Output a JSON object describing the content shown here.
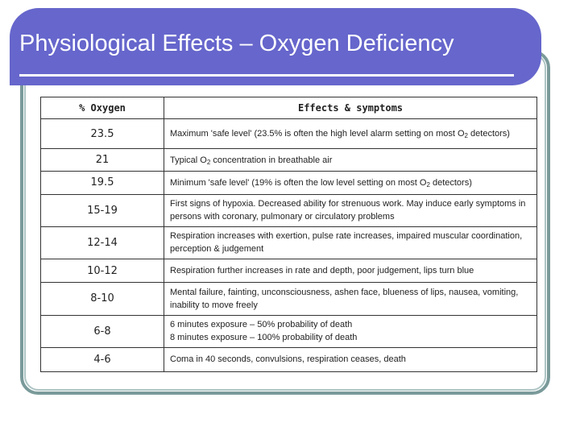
{
  "slide": {
    "title": "Physiological Effects – Oxygen Deficiency"
  },
  "table": {
    "headers": [
      "% Oxygen",
      "Effects & symptoms"
    ],
    "rows": [
      {
        "oxygen": "23.5",
        "effect": [
          "Maximum 'safe level' (23.5% is often the high level alarm setting on most O",
          "2",
          " detectors)"
        ]
      },
      {
        "oxygen": "21",
        "effect": [
          "Typical O",
          "2",
          " concentration in breathable air"
        ]
      },
      {
        "oxygen": "19.5",
        "effect": [
          "Minimum 'safe level' (19% is often the low level setting on most O",
          "2",
          " detectors)"
        ]
      },
      {
        "oxygen": "15-19",
        "effect": [
          "First signs of hypoxia. Decreased ability for strenuous work. May induce early symptoms in persons with coronary, pulmonary or circulatory problems"
        ]
      },
      {
        "oxygen": "12-14",
        "effect": [
          "Respiration increases with exertion, pulse rate increases, impaired muscular coordination, perception & judgement"
        ]
      },
      {
        "oxygen": "10-12",
        "effect": [
          "Respiration further increases in rate and depth, poor judgement, lips turn blue"
        ]
      },
      {
        "oxygen": "8-10",
        "effect": [
          "Mental failure, fainting, unconsciousness, ashen face, blueness of lips, nausea, vomiting, inability to move freely"
        ]
      },
      {
        "oxygen": "6-8",
        "effect": [
          "6 minutes exposure – 50% probability of death",
          "8 minutes exposure – 100% probability of death"
        ]
      },
      {
        "oxygen": "4-6",
        "effect": [
          "Coma in 40 seconds, convulsions, respiration ceases, death"
        ]
      }
    ]
  },
  "colors": {
    "title_band": "#6666cc",
    "frame": "#7a9a9a",
    "frame_inner": "#aec4c4"
  }
}
